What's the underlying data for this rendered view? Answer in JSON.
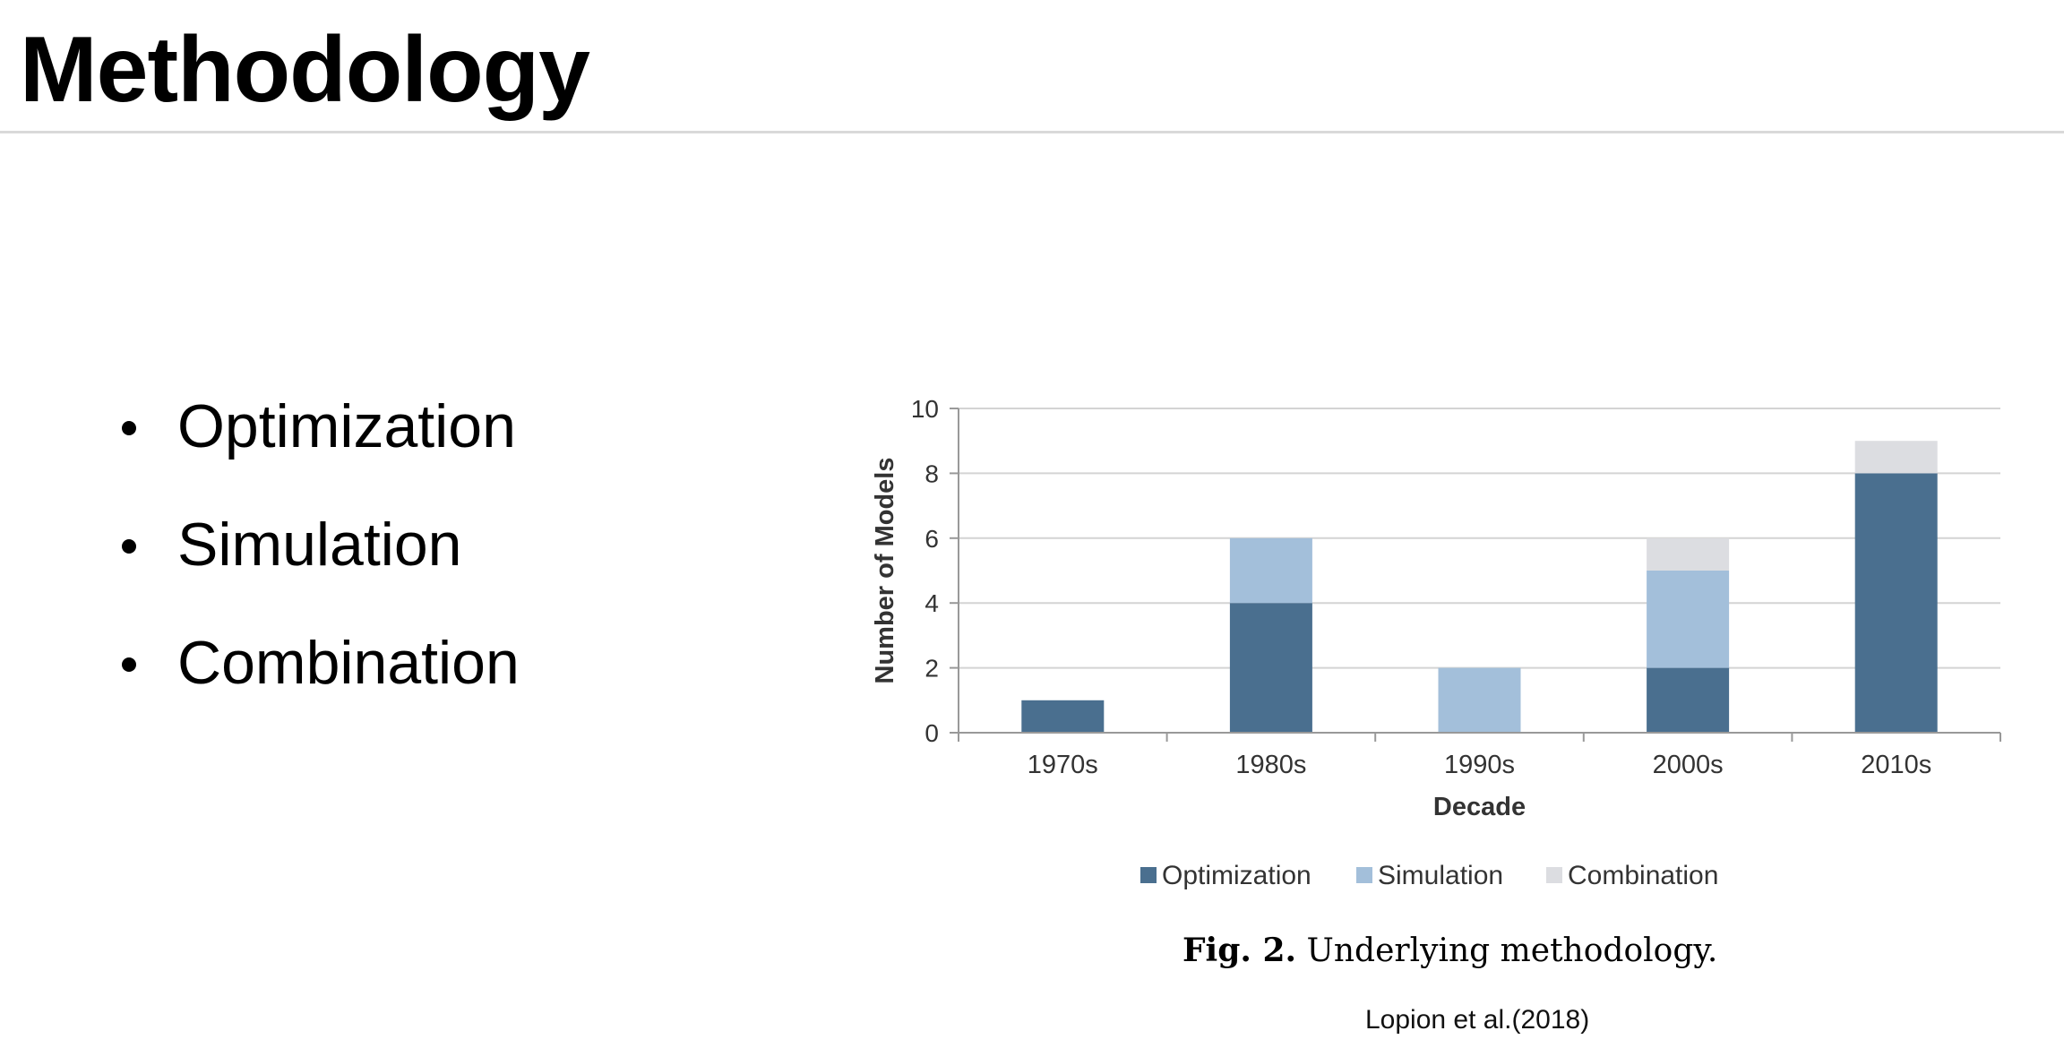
{
  "slide": {
    "title": "Methodology"
  },
  "bullets": [
    "Optimization",
    "Simulation",
    "Combination"
  ],
  "figure": {
    "caption_label": "Fig. 2.",
    "caption_text": "Underlying methodology.",
    "source": "Lopion et al.(2018)"
  },
  "chart_data": {
    "type": "bar",
    "stacked": true,
    "categories": [
      "1970s",
      "1980s",
      "1990s",
      "2000s",
      "2010s"
    ],
    "series": [
      {
        "name": "Optimization",
        "values": [
          1,
          4,
          0,
          2,
          8
        ],
        "color": "#4a6f8f"
      },
      {
        "name": "Simulation",
        "values": [
          0,
          2,
          2,
          3,
          0
        ],
        "color": "#a3bfda"
      },
      {
        "name": "Combination",
        "values": [
          0,
          0,
          0,
          1,
          1
        ],
        "color": "#dcdde1"
      }
    ],
    "xlabel": "Decade",
    "ylabel": "Number of Models",
    "ylim": [
      0,
      10
    ],
    "yticks": [
      0,
      2,
      4,
      6,
      8,
      10
    ],
    "grid": true,
    "legend_position": "bottom"
  }
}
